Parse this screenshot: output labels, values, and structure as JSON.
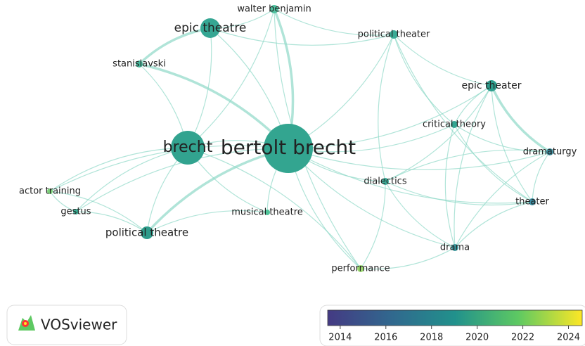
{
  "nodes": [
    {
      "label": "bertolt brecht"
    },
    {
      "label": "brecht"
    },
    {
      "label": "epic theatre"
    },
    {
      "label": "walter benjamin"
    },
    {
      "label": "political theater"
    },
    {
      "label": "stanislavski"
    },
    {
      "label": "epic theater"
    },
    {
      "label": "critical theory"
    },
    {
      "label": "dramaturgy"
    },
    {
      "label": "dialectics"
    },
    {
      "label": "theater"
    },
    {
      "label": "actor training"
    },
    {
      "label": "gestus"
    },
    {
      "label": "musical theatre"
    },
    {
      "label": "political theatre"
    },
    {
      "label": "drama"
    },
    {
      "label": "performance"
    }
  ],
  "logo": {
    "text": "VOSviewer"
  },
  "colorbar": {
    "range": [
      2013.45,
      2024.6
    ],
    "ticks": [
      2014,
      2016,
      2018,
      2020,
      2022,
      2024
    ]
  }
}
